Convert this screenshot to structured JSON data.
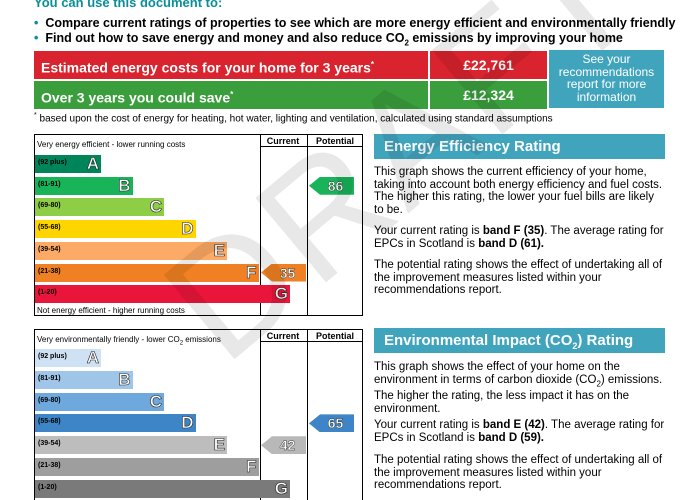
{
  "intro": {
    "title": "You can use this document to:",
    "bullet1": "Compare current ratings of properties to see which are more energy efficient and environmentally friendly",
    "bullet2_pre": "Find out how to save energy and money and also reduce CO",
    "bullet2_sub": "2",
    "bullet2_post": " emissions by improving your home"
  },
  "costs": {
    "estimated_label": "Estimated energy costs for your home for 3 years",
    "estimated_value": "£22,761",
    "saving_label": "Over 3 years you could save",
    "saving_value": "£12,324",
    "asterisk": "*",
    "recommendations_box": "See your recommendations report for more information",
    "footnote": "based upon the cost of energy for heating, hot water, lighting and ventilation, calculated using standard assumptions"
  },
  "energy_graph": {
    "top_caption": "Very energy efficient - lower running costs",
    "bottom_caption": "Not energy efficient - higher running costs",
    "col_current": "Current",
    "col_potential": "Potential",
    "bands": [
      {
        "range": "(92 plus)",
        "letter": "A",
        "color": "#00855a"
      },
      {
        "range": "(81-91)",
        "letter": "B",
        "color": "#19b459"
      },
      {
        "range": "(69-80)",
        "letter": "C",
        "color": "#8dce46"
      },
      {
        "range": "(55-68)",
        "letter": "D",
        "color": "#ffd500"
      },
      {
        "range": "(39-54)",
        "letter": "E",
        "color": "#fcaa65"
      },
      {
        "range": "(21-38)",
        "letter": "F",
        "color": "#ef8023"
      },
      {
        "range": "(1-20)",
        "letter": "G",
        "color": "#e9153b"
      }
    ],
    "current_value": "35",
    "current_color": "#ef8023",
    "potential_value": "86",
    "potential_color": "#19b459"
  },
  "env_graph": {
    "top_caption_pre": "Very environmentally friendly - lower CO",
    "top_caption_sub": "2",
    "top_caption_post": " emissions",
    "col_current": "Current",
    "col_potential": "Potential",
    "bands": [
      {
        "range": "(92 plus)",
        "letter": "A",
        "color": "#cfe2f3"
      },
      {
        "range": "(81-91)",
        "letter": "B",
        "color": "#9fc5e8"
      },
      {
        "range": "(69-80)",
        "letter": "C",
        "color": "#6fa8dc"
      },
      {
        "range": "(55-68)",
        "letter": "D",
        "color": "#3d85c6"
      },
      {
        "range": "(39-54)",
        "letter": "E",
        "color": "#bdbdbd"
      },
      {
        "range": "(21-38)",
        "letter": "F",
        "color": "#9e9e9e"
      },
      {
        "range": "(1-20)",
        "letter": "G",
        "color": "#7a7a7a"
      }
    ],
    "current_value": "42",
    "current_color": "#b8b8b8",
    "potential_value": "65",
    "potential_color": "#3d85c6"
  },
  "ee_section": {
    "title": "Energy Efficiency Rating",
    "p1": "This graph shows the current efficiency of your home, taking into account both energy efficiency and fuel costs. The higher this rating, the lower your fuel bills are likely to be.",
    "p2_pre": "Your current rating is ",
    "p2_band": "band F (35)",
    "p2_mid": ". The average rating for EPCs in Scotland is ",
    "p2_avg": "band D (61).",
    "p3": "The potential rating shows the effect of undertaking all of the improvement measures listed within your recommendations report."
  },
  "ei_section": {
    "title_pre": "Environmental Impact (CO",
    "title_sub": "2",
    "title_post": ") Rating",
    "p1_pre": "This graph shows the effect of your home on the environment in terms of carbon dioxide (CO",
    "p1_sub": "2",
    "p1_post": ") emissions. The higher the rating, the less impact it has on the environment.",
    "p2_pre": "Your current rating is ",
    "p2_band": "band E (42)",
    "p2_mid": ". The average rating for EPCs in Scotland is ",
    "p2_avg": "band D (59).",
    "p3": "The potential rating shows the effect of undertaking all of the improvement measures listed within your recommendations report."
  },
  "watermark": "DRAFT"
}
